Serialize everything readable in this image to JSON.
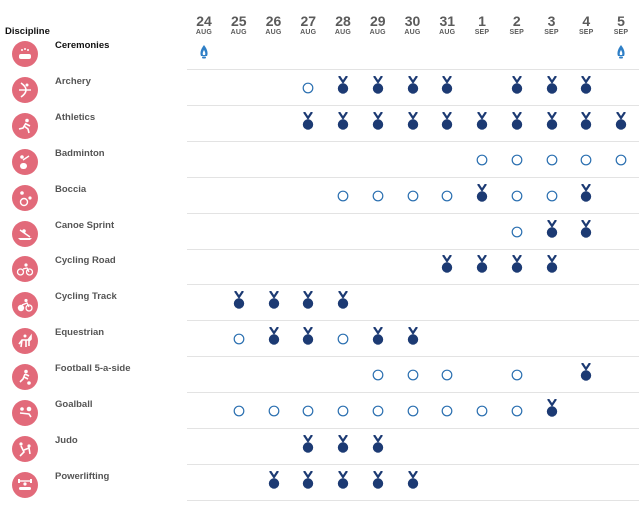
{
  "header": {
    "discipline_label": "Discipline"
  },
  "days": [
    {
      "day": "24",
      "month": "AUG"
    },
    {
      "day": "25",
      "month": "AUG"
    },
    {
      "day": "26",
      "month": "AUG"
    },
    {
      "day": "27",
      "month": "AUG"
    },
    {
      "day": "28",
      "month": "AUG"
    },
    {
      "day": "29",
      "month": "AUG"
    },
    {
      "day": "30",
      "month": "AUG"
    },
    {
      "day": "31",
      "month": "AUG"
    },
    {
      "day": "1",
      "month": "SEP"
    },
    {
      "day": "2",
      "month": "SEP"
    },
    {
      "day": "3",
      "month": "SEP"
    },
    {
      "day": "4",
      "month": "SEP"
    },
    {
      "day": "5",
      "month": "SEP"
    }
  ],
  "colors": {
    "pictogram": "#e26a7a",
    "medal": "#1c3a73",
    "event_ring": "#2a6fb0",
    "flame": "#2f7fc6"
  },
  "legend_semantics": {
    "C": "ceremony-flame",
    "M": "medal-event",
    "E": "competition-day"
  },
  "disciplines": [
    {
      "name": "Ceremonies",
      "icon": "ceremonies-icon",
      "cells": [
        "C",
        "",
        "",
        "",
        "",
        "",
        "",
        "",
        "",
        "",
        "",
        "",
        "C"
      ]
    },
    {
      "name": "Archery",
      "icon": "archery-icon",
      "cells": [
        "",
        "",
        "",
        "E",
        "M",
        "M",
        "M",
        "M",
        "",
        "M",
        "M",
        "M",
        ""
      ]
    },
    {
      "name": "Athletics",
      "icon": "athletics-icon",
      "cells": [
        "",
        "",
        "",
        "M",
        "M",
        "M",
        "M",
        "M",
        "M",
        "M",
        "M",
        "M",
        "M"
      ]
    },
    {
      "name": "Badminton",
      "icon": "badminton-icon",
      "cells": [
        "",
        "",
        "",
        "",
        "",
        "",
        "",
        "",
        "E",
        "E",
        "E",
        "E",
        "E"
      ]
    },
    {
      "name": "Boccia",
      "icon": "boccia-icon",
      "cells": [
        "",
        "",
        "",
        "",
        "E",
        "E",
        "E",
        "E",
        "M",
        "E",
        "E",
        "M",
        ""
      ]
    },
    {
      "name": "Canoe Sprint",
      "icon": "canoe-sprint-icon",
      "cells": [
        "",
        "",
        "",
        "",
        "",
        "",
        "",
        "",
        "",
        "E",
        "M",
        "M",
        ""
      ]
    },
    {
      "name": "Cycling Road",
      "icon": "cycling-road-icon",
      "cells": [
        "",
        "",
        "",
        "",
        "",
        "",
        "",
        "M",
        "M",
        "M",
        "M",
        "",
        ""
      ]
    },
    {
      "name": "Cycling Track",
      "icon": "cycling-track-icon",
      "cells": [
        "",
        "M",
        "M",
        "M",
        "M",
        "",
        "",
        "",
        "",
        "",
        "",
        "",
        ""
      ]
    },
    {
      "name": "Equestrian",
      "icon": "equestrian-icon",
      "cells": [
        "",
        "E",
        "M",
        "M",
        "E",
        "M",
        "M",
        "",
        "",
        "",
        "",
        "",
        ""
      ]
    },
    {
      "name": "Football 5-a-side",
      "icon": "football-icon",
      "cells": [
        "",
        "",
        "",
        "",
        "",
        "E",
        "E",
        "E",
        "",
        "E",
        "",
        "M",
        ""
      ]
    },
    {
      "name": "Goalball",
      "icon": "goalball-icon",
      "cells": [
        "",
        "E",
        "E",
        "E",
        "E",
        "E",
        "E",
        "E",
        "E",
        "E",
        "M",
        "",
        ""
      ]
    },
    {
      "name": "Judo",
      "icon": "judo-icon",
      "cells": [
        "",
        "",
        "",
        "M",
        "M",
        "M",
        "",
        "",
        "",
        "",
        "",
        "",
        ""
      ]
    },
    {
      "name": "Powerlifting",
      "icon": "powerlifting-icon",
      "cells": [
        "",
        "",
        "M",
        "M",
        "M",
        "M",
        "M",
        "",
        "",
        "",
        "",
        "",
        ""
      ]
    }
  ]
}
